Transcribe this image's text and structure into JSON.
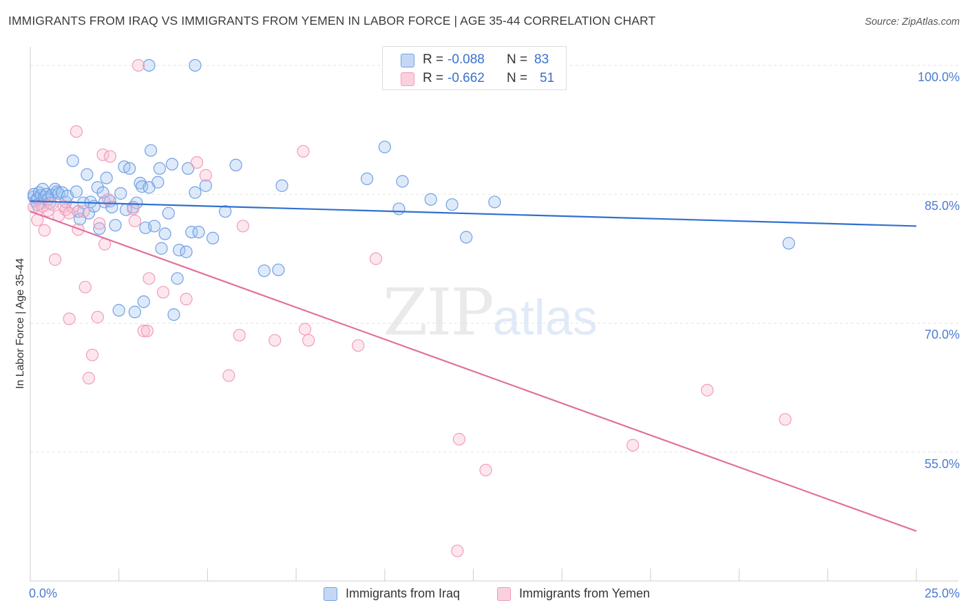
{
  "header": {
    "title": "IMMIGRANTS FROM IRAQ VS IMMIGRANTS FROM YEMEN IN LABOR FORCE | AGE 35-44 CORRELATION CHART",
    "source": "Source: ZipAtlas.com"
  },
  "watermark": {
    "zip": "ZIP",
    "atlas": "atlas"
  },
  "legend_top": {
    "rows": [
      {
        "r_label": "R =",
        "r_value": "-0.088",
        "n_label": "N =",
        "n_value": "83"
      },
      {
        "r_label": "R =",
        "r_value": "-0.662",
        "n_label": "N =",
        "n_value": "51"
      }
    ]
  },
  "legend_bottom": {
    "items": [
      {
        "label": "Immigrants from Iraq"
      },
      {
        "label": "Immigrants from Yemen"
      }
    ]
  },
  "colors": {
    "iraq": "#6fa0e6",
    "iraq_line": "#2f6fcf",
    "yemen": "#f29bb8",
    "yemen_line": "#e0709a",
    "tick_text": "#4b7bd1",
    "grid": "#e3e3e3"
  },
  "chart_data": {
    "type": "scatter",
    "title": "IMMIGRANTS FROM IRAQ VS IMMIGRANTS FROM YEMEN IN LABOR FORCE | AGE 35-44 CORRELATION CHART",
    "xlabel": "",
    "ylabel": "In Labor Force | Age 35-44",
    "xlim": [
      0,
      25
    ],
    "ylim": [
      40,
      102
    ],
    "x_tick_labels": [
      "0.0%",
      "25.0%"
    ],
    "y_ticks": [
      100,
      85,
      70,
      55
    ],
    "y_tick_labels": [
      "100.0%",
      "85.0%",
      "70.0%",
      "55.0%"
    ],
    "grid": true,
    "legend_position": "bottom",
    "series": [
      {
        "name": "Immigrants from Iraq",
        "R": -0.088,
        "N": 83,
        "trend": {
          "x": [
            0,
            25
          ],
          "y": [
            84.2,
            81.3
          ]
        },
        "points": [
          [
            0.1,
            84.7
          ],
          [
            0.1,
            85.0
          ],
          [
            0.15,
            84.2
          ],
          [
            0.2,
            83.8
          ],
          [
            0.2,
            84.5
          ],
          [
            0.25,
            85.2
          ],
          [
            0.3,
            84.9
          ],
          [
            0.35,
            85.6
          ],
          [
            0.4,
            84.7
          ],
          [
            0.45,
            85.0
          ],
          [
            0.5,
            84.4
          ],
          [
            0.55,
            84.0
          ],
          [
            0.6,
            84.9
          ],
          [
            0.7,
            85.6
          ],
          [
            0.75,
            85.3
          ],
          [
            0.8,
            85.1
          ],
          [
            0.9,
            85.2
          ],
          [
            1.0,
            84.1
          ],
          [
            1.05,
            84.8
          ],
          [
            1.2,
            88.9
          ],
          [
            1.3,
            85.3
          ],
          [
            1.35,
            83.0
          ],
          [
            1.4,
            82.1
          ],
          [
            1.5,
            84.0
          ],
          [
            1.6,
            87.3
          ],
          [
            1.65,
            82.8
          ],
          [
            1.7,
            84.1
          ],
          [
            1.8,
            83.6
          ],
          [
            1.9,
            85.8
          ],
          [
            1.95,
            81.0
          ],
          [
            2.05,
            85.2
          ],
          [
            2.1,
            84.1
          ],
          [
            2.15,
            86.9
          ],
          [
            2.25,
            84.2
          ],
          [
            2.3,
            83.5
          ],
          [
            2.4,
            81.4
          ],
          [
            2.5,
            71.5
          ],
          [
            2.55,
            85.1
          ],
          [
            2.65,
            88.2
          ],
          [
            2.7,
            83.2
          ],
          [
            2.8,
            88.0
          ],
          [
            2.9,
            83.5
          ],
          [
            2.95,
            71.3
          ],
          [
            3.0,
            84.0
          ],
          [
            3.1,
            86.3
          ],
          [
            3.15,
            85.9
          ],
          [
            3.2,
            72.5
          ],
          [
            3.25,
            81.1
          ],
          [
            3.35,
            85.8
          ],
          [
            3.4,
            90.1
          ],
          [
            3.5,
            81.3
          ],
          [
            3.6,
            86.4
          ],
          [
            3.65,
            88.0
          ],
          [
            3.7,
            78.7
          ],
          [
            3.8,
            80.4
          ],
          [
            3.9,
            82.8
          ],
          [
            4.0,
            88.5
          ],
          [
            4.05,
            71.0
          ],
          [
            4.15,
            75.2
          ],
          [
            4.2,
            78.5
          ],
          [
            4.4,
            78.3
          ],
          [
            4.45,
            88.0
          ],
          [
            4.55,
            80.6
          ],
          [
            4.65,
            85.2
          ],
          [
            4.75,
            80.6
          ],
          [
            4.95,
            86.0
          ],
          [
            5.15,
            79.9
          ],
          [
            5.5,
            83.0
          ],
          [
            5.8,
            88.4
          ],
          [
            6.6,
            76.1
          ],
          [
            7.0,
            76.2
          ],
          [
            7.1,
            86.0
          ],
          [
            9.5,
            86.8
          ],
          [
            10.0,
            90.5
          ],
          [
            10.4,
            83.3
          ],
          [
            10.5,
            86.5
          ],
          [
            11.3,
            84.4
          ],
          [
            11.9,
            83.8
          ],
          [
            12.3,
            80.0
          ],
          [
            13.1,
            84.1
          ],
          [
            21.4,
            79.3
          ],
          [
            3.35,
            100.0
          ],
          [
            4.65,
            100.0
          ]
        ]
      },
      {
        "name": "Immigrants from Yemen",
        "R": -0.662,
        "N": 51,
        "trend": {
          "x": [
            0,
            25
          ],
          "y": [
            83.0,
            45.8
          ]
        },
        "points": [
          [
            0.1,
            83.5
          ],
          [
            0.2,
            82.0
          ],
          [
            0.25,
            83.3
          ],
          [
            0.35,
            83.6
          ],
          [
            0.4,
            80.8
          ],
          [
            0.5,
            83.1
          ],
          [
            0.6,
            83.8
          ],
          [
            0.7,
            77.4
          ],
          [
            0.8,
            82.5
          ],
          [
            0.95,
            83.6
          ],
          [
            1.0,
            83.2
          ],
          [
            1.1,
            70.5
          ],
          [
            1.2,
            83.5
          ],
          [
            1.3,
            92.3
          ],
          [
            1.35,
            80.9
          ],
          [
            1.5,
            83.0
          ],
          [
            1.55,
            74.2
          ],
          [
            1.65,
            63.6
          ],
          [
            1.75,
            66.3
          ],
          [
            1.9,
            70.7
          ],
          [
            1.95,
            81.6
          ],
          [
            2.05,
            89.6
          ],
          [
            2.1,
            79.2
          ],
          [
            2.2,
            84.4
          ],
          [
            2.25,
            89.4
          ],
          [
            2.9,
            83.3
          ],
          [
            2.95,
            81.9
          ],
          [
            3.05,
            100.0
          ],
          [
            3.2,
            69.1
          ],
          [
            3.3,
            69.1
          ],
          [
            3.35,
            75.2
          ],
          [
            3.75,
            73.6
          ],
          [
            4.4,
            72.8
          ],
          [
            4.7,
            88.7
          ],
          [
            4.95,
            87.2
          ],
          [
            5.6,
            63.9
          ],
          [
            5.9,
            68.6
          ],
          [
            6.0,
            81.3
          ],
          [
            6.9,
            68.0
          ],
          [
            7.7,
            90.0
          ],
          [
            7.75,
            69.3
          ],
          [
            7.85,
            68.0
          ],
          [
            9.25,
            67.4
          ],
          [
            9.75,
            77.5
          ],
          [
            12.1,
            56.5
          ],
          [
            12.05,
            43.5
          ],
          [
            12.85,
            52.9
          ],
          [
            17.0,
            55.8
          ],
          [
            19.1,
            62.2
          ],
          [
            21.3,
            58.8
          ],
          [
            1.1,
            82.8
          ]
        ]
      }
    ]
  }
}
